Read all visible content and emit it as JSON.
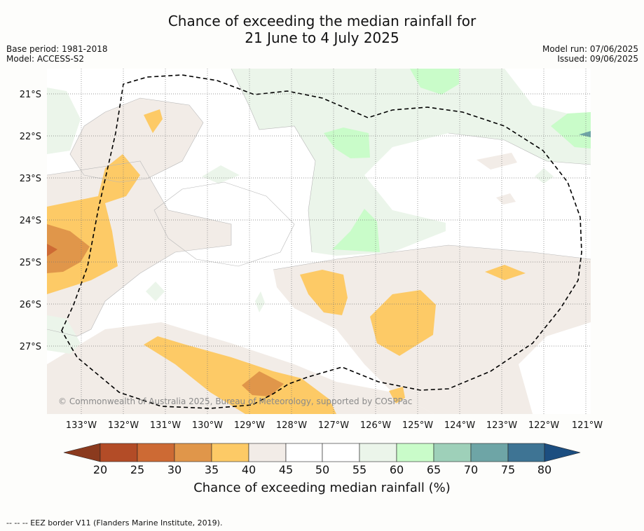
{
  "title_line1": "Chance of exceeding the median rainfall for",
  "title_line2": "21 June to 4 July 2025",
  "base_period": "Base period: 1981-2018",
  "model": "Model: ACCESS-S2",
  "model_run": "Model run: 07/06/2025",
  "issued": "Issued: 09/06/2025",
  "copyright": "© Commonwealth of Australia 2025, Bureau of Meteorology, supported by COSPPac",
  "footer": "--  --  -- EEZ border V11 (Flanders Marine Institute, 2019).",
  "colors": {
    "c20": "#8b3a1e",
    "c25": "#b34c27",
    "c30": "#cd6a34",
    "c35": "#e0964a",
    "c40": "#fdca66",
    "c45": "#f2ece7",
    "c50": "#ffffff",
    "c55": "#ffffff",
    "c60": "#ebf5ea",
    "c65": "#c9fcc9",
    "c70": "#9ed0b9",
    "c75": "#6ea5a6",
    "c80": "#3e7494",
    "c85": "#1c4e80"
  },
  "chart_data": {
    "type": "heatmap",
    "x_ticks": [
      "133°W",
      "132°W",
      "131°W",
      "130°W",
      "129°W",
      "128°W",
      "127°W",
      "126°W",
      "125°W",
      "124°W",
      "123°W",
      "122°W",
      "121°W"
    ],
    "y_ticks": [
      "21°S",
      "22°S",
      "23°S",
      "24°S",
      "25°S",
      "26°S",
      "27°S"
    ],
    "colorbar": {
      "ticks": [
        "20",
        "25",
        "30",
        "35",
        "40",
        "45",
        "50",
        "55",
        "60",
        "65",
        "70",
        "75",
        "80"
      ],
      "label": "Chance of exceeding median rainfall (%)"
    }
  }
}
